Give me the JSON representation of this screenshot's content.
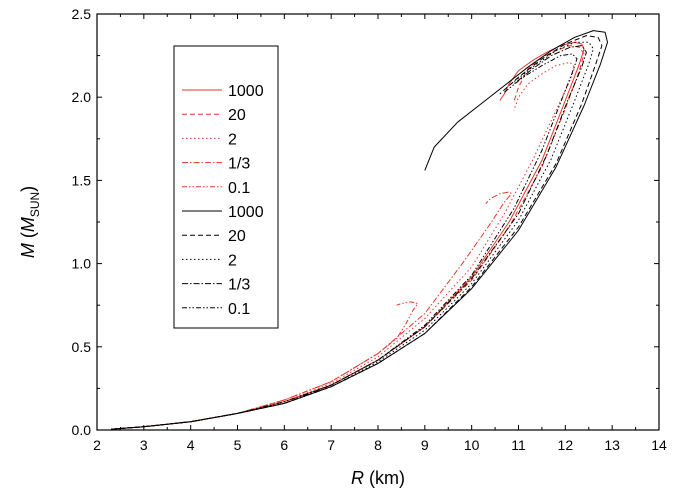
{
  "chart_data": {
    "type": "line",
    "title": "",
    "xlabel_var": "R",
    "xlabel_unit": " (km)",
    "ylabel_var": "M",
    "ylabel_open": " (",
    "ylabel_unit_var": "M",
    "ylabel_unit_sub": "SUN",
    "ylabel_close": ")",
    "xlim": [
      2,
      14
    ],
    "ylim": [
      0,
      2.5
    ],
    "xticks": [
      "2",
      "3",
      "4",
      "5",
      "6",
      "7",
      "8",
      "9",
      "10",
      "11",
      "12",
      "13",
      "14"
    ],
    "yticks": [
      "0.0",
      "0.5",
      "1.0",
      "1.5",
      "2.0",
      "2.5"
    ],
    "legend_position": "top-left",
    "colors": {
      "red": "#e8342a",
      "black": "#000000"
    },
    "series": [
      {
        "name": "1000",
        "color": "red",
        "dash": "",
        "points": [
          [
            2.3,
            0.005
          ],
          [
            3,
            0.02
          ],
          [
            4,
            0.05
          ],
          [
            5,
            0.1
          ],
          [
            6,
            0.17
          ],
          [
            7,
            0.27
          ],
          [
            8,
            0.42
          ],
          [
            9,
            0.62
          ],
          [
            10,
            0.92
          ],
          [
            10.8,
            1.25
          ],
          [
            11.5,
            1.62
          ],
          [
            12.0,
            1.98
          ],
          [
            12.3,
            2.2
          ],
          [
            12.4,
            2.29
          ],
          [
            12.35,
            2.32
          ],
          [
            12.2,
            2.33
          ],
          [
            11.9,
            2.31
          ],
          [
            11.6,
            2.27
          ],
          [
            11.3,
            2.22
          ],
          [
            11.0,
            2.16
          ],
          [
            10.8,
            2.08
          ],
          [
            10.7,
            2.02
          ],
          [
            10.6,
            1.98
          ]
        ]
      },
      {
        "name": "20",
        "color": "red",
        "dash": "5 3",
        "points": [
          [
            2.3,
            0.005
          ],
          [
            3,
            0.02
          ],
          [
            4,
            0.05
          ],
          [
            5,
            0.1
          ],
          [
            6,
            0.17
          ],
          [
            7,
            0.27
          ],
          [
            8,
            0.42
          ],
          [
            9,
            0.62
          ],
          [
            10,
            0.9
          ],
          [
            10.8,
            1.22
          ],
          [
            11.5,
            1.58
          ],
          [
            12.0,
            1.93
          ],
          [
            12.3,
            2.16
          ],
          [
            12.4,
            2.26
          ],
          [
            12.3,
            2.3
          ],
          [
            12.1,
            2.31
          ],
          [
            11.8,
            2.28
          ],
          [
            11.5,
            2.24
          ],
          [
            11.2,
            2.17
          ],
          [
            11.0,
            2.06
          ],
          [
            10.9,
            1.97
          ]
        ]
      },
      {
        "name": "2",
        "color": "red",
        "dash": "1.5 2.5",
        "points": [
          [
            2.3,
            0.005
          ],
          [
            3,
            0.02
          ],
          [
            4,
            0.05
          ],
          [
            5,
            0.1
          ],
          [
            6,
            0.17
          ],
          [
            7,
            0.28
          ],
          [
            8,
            0.44
          ],
          [
            9,
            0.67
          ],
          [
            10,
            0.98
          ],
          [
            10.7,
            1.3
          ],
          [
            11.3,
            1.62
          ],
          [
            11.8,
            1.92
          ],
          [
            12.1,
            2.1
          ],
          [
            12.2,
            2.18
          ],
          [
            12.1,
            2.21
          ],
          [
            11.8,
            2.19
          ],
          [
            11.5,
            2.14
          ],
          [
            11.2,
            2.08
          ],
          [
            11.0,
            2.0
          ],
          [
            10.9,
            1.92
          ]
        ]
      },
      {
        "name": "1/3",
        "color": "red",
        "dash": "6 2 1.5 2",
        "points": [
          [
            2.3,
            0.005
          ],
          [
            3,
            0.02
          ],
          [
            4,
            0.05
          ],
          [
            5,
            0.1
          ],
          [
            6,
            0.18
          ],
          [
            7,
            0.29
          ],
          [
            8,
            0.46
          ],
          [
            9,
            0.7
          ],
          [
            9.8,
            1.0
          ],
          [
            10.4,
            1.24
          ],
          [
            10.7,
            1.37
          ],
          [
            10.85,
            1.42
          ],
          [
            10.8,
            1.43
          ],
          [
            10.6,
            1.42
          ],
          [
            10.4,
            1.39
          ],
          [
            10.3,
            1.36
          ]
        ]
      },
      {
        "name": "0.1",
        "color": "red",
        "dash": "5 2 1.5 2 1.5 2",
        "points": [
          [
            2.3,
            0.005
          ],
          [
            3,
            0.02
          ],
          [
            4,
            0.05
          ],
          [
            5,
            0.1
          ],
          [
            6,
            0.18
          ],
          [
            7,
            0.29
          ],
          [
            8,
            0.46
          ],
          [
            8.4,
            0.55
          ],
          [
            8.6,
            0.64
          ],
          [
            8.75,
            0.72
          ],
          [
            8.85,
            0.76
          ],
          [
            8.7,
            0.77
          ],
          [
            8.5,
            0.76
          ],
          [
            8.4,
            0.75
          ]
        ]
      },
      {
        "name": "1000",
        "color": "black",
        "dash": "",
        "points": [
          [
            2.3,
            0.005
          ],
          [
            3,
            0.02
          ],
          [
            4,
            0.05
          ],
          [
            5,
            0.1
          ],
          [
            6,
            0.16
          ],
          [
            7,
            0.26
          ],
          [
            8,
            0.4
          ],
          [
            9,
            0.58
          ],
          [
            10,
            0.85
          ],
          [
            11,
            1.2
          ],
          [
            11.8,
            1.58
          ],
          [
            12.4,
            1.95
          ],
          [
            12.75,
            2.2
          ],
          [
            12.9,
            2.33
          ],
          [
            12.85,
            2.39
          ],
          [
            12.6,
            2.4
          ],
          [
            12.2,
            2.36
          ],
          [
            11.7,
            2.28
          ],
          [
            11.2,
            2.18
          ],
          [
            10.7,
            2.07
          ],
          [
            10.2,
            1.96
          ],
          [
            9.7,
            1.85
          ],
          [
            9.2,
            1.7
          ],
          [
            9.0,
            1.56
          ]
        ]
      },
      {
        "name": "20",
        "color": "black",
        "dash": "5 3",
        "points": [
          [
            2.3,
            0.005
          ],
          [
            3,
            0.02
          ],
          [
            4,
            0.05
          ],
          [
            5,
            0.1
          ],
          [
            6,
            0.16
          ],
          [
            7,
            0.26
          ],
          [
            8,
            0.4
          ],
          [
            9,
            0.58
          ],
          [
            10,
            0.86
          ],
          [
            11,
            1.22
          ],
          [
            11.8,
            1.6
          ],
          [
            12.35,
            1.96
          ],
          [
            12.65,
            2.2
          ],
          [
            12.78,
            2.31
          ],
          [
            12.7,
            2.36
          ],
          [
            12.45,
            2.37
          ],
          [
            12.0,
            2.32
          ],
          [
            11.5,
            2.23
          ],
          [
            11.0,
            2.12
          ],
          [
            10.6,
            2.02
          ]
        ]
      },
      {
        "name": "2",
        "color": "black",
        "dash": "1.5 2.5",
        "points": [
          [
            2.3,
            0.005
          ],
          [
            3,
            0.02
          ],
          [
            4,
            0.05
          ],
          [
            5,
            0.1
          ],
          [
            6,
            0.16
          ],
          [
            7,
            0.26
          ],
          [
            8,
            0.41
          ],
          [
            9,
            0.6
          ],
          [
            10,
            0.88
          ],
          [
            11,
            1.26
          ],
          [
            11.7,
            1.63
          ],
          [
            12.2,
            1.98
          ],
          [
            12.5,
            2.2
          ],
          [
            12.6,
            2.29
          ],
          [
            12.5,
            2.33
          ],
          [
            12.2,
            2.33
          ],
          [
            11.8,
            2.28
          ],
          [
            11.3,
            2.18
          ],
          [
            10.8,
            2.07
          ]
        ]
      },
      {
        "name": "1/3",
        "color": "black",
        "dash": "6 2 1.5 2",
        "points": [
          [
            2.3,
            0.005
          ],
          [
            3,
            0.02
          ],
          [
            4,
            0.05
          ],
          [
            5,
            0.1
          ],
          [
            6,
            0.16
          ],
          [
            7,
            0.27
          ],
          [
            8,
            0.42
          ],
          [
            9,
            0.62
          ],
          [
            10,
            0.91
          ],
          [
            11,
            1.3
          ],
          [
            11.6,
            1.65
          ],
          [
            12.05,
            1.98
          ],
          [
            12.35,
            2.18
          ],
          [
            12.45,
            2.27
          ],
          [
            12.35,
            2.31
          ],
          [
            12.1,
            2.3
          ],
          [
            11.7,
            2.25
          ],
          [
            11.3,
            2.17
          ],
          [
            10.9,
            2.08
          ]
        ]
      },
      {
        "name": "0.1",
        "color": "black",
        "dash": "5 2 1.5 2 1.5 2",
        "points": [
          [
            2.3,
            0.005
          ],
          [
            3,
            0.02
          ],
          [
            4,
            0.05
          ],
          [
            5,
            0.1
          ],
          [
            6,
            0.17
          ],
          [
            7,
            0.27
          ],
          [
            8,
            0.42
          ],
          [
            9,
            0.63
          ],
          [
            10,
            0.93
          ],
          [
            10.9,
            1.33
          ],
          [
            11.5,
            1.68
          ],
          [
            11.9,
            1.97
          ],
          [
            12.15,
            2.15
          ],
          [
            12.25,
            2.23
          ],
          [
            12.15,
            2.26
          ],
          [
            11.9,
            2.25
          ],
          [
            11.5,
            2.19
          ],
          [
            11.1,
            2.12
          ],
          [
            10.7,
            2.03
          ]
        ]
      }
    ]
  }
}
